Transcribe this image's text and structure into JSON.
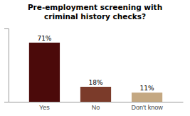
{
  "chart_data": {
    "type": "bar",
    "title": "Pre-employment screening with\ncriminal history checks?",
    "categories": [
      "Yes",
      "No",
      "Don't know"
    ],
    "values": [
      71,
      18,
      11
    ],
    "value_labels": [
      "71%",
      "18%",
      "11%"
    ],
    "colors": [
      "#4B0A0A",
      "#7B3B2A",
      "#C4A882"
    ],
    "ylim": [
      0,
      88
    ],
    "data_labels": true,
    "tick_labels": "x"
  }
}
